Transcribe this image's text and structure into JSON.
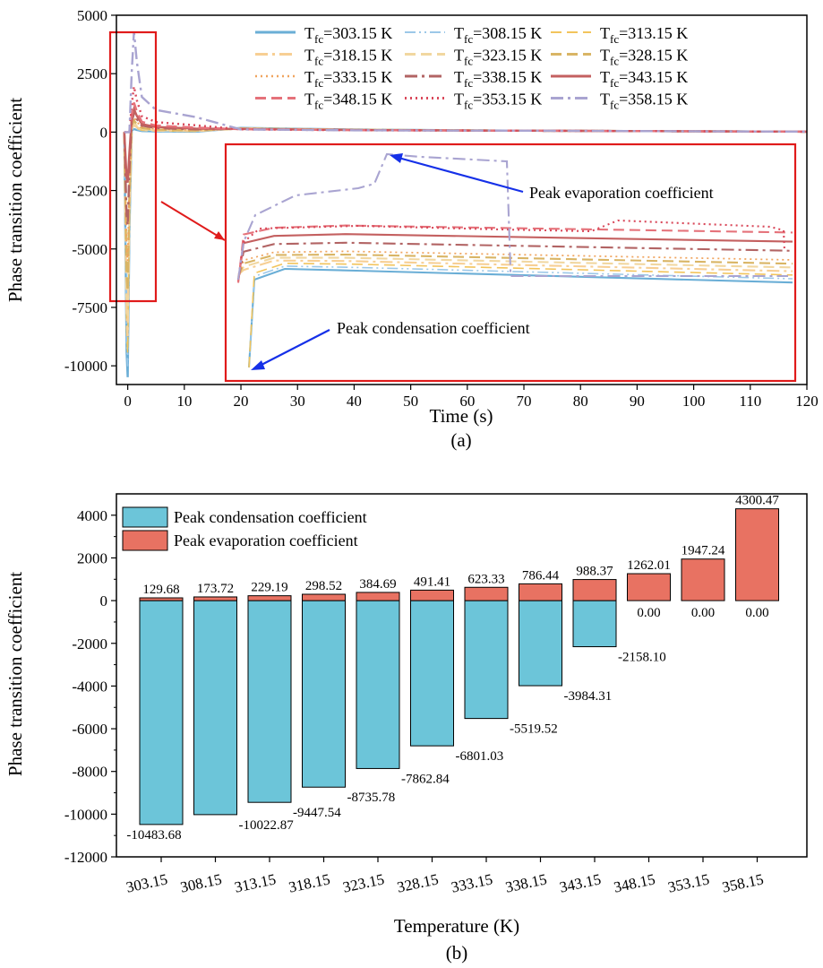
{
  "chart_data": [
    {
      "type": "line",
      "panel_label": "(a)",
      "xlabel": "Time (s)",
      "ylabel": "Phase transition coefficient",
      "xlim": [
        -2,
        120
      ],
      "ylim": [
        -10800,
        5000
      ],
      "x_ticks": [
        0,
        10,
        20,
        30,
        40,
        50,
        60,
        70,
        80,
        90,
        100,
        110,
        120
      ],
      "y_ticks": [
        5000,
        2500,
        0,
        -2500,
        -5000,
        -7500,
        -10000
      ],
      "legend_position": "top",
      "legend_prefix": "T",
      "legend_sub": "fc",
      "series": [
        {
          "name": "=303.15 K",
          "color": "#6aaed6",
          "dash": "solid",
          "width": 3,
          "peak_cond": -10483.68,
          "peak_evap": 129.68
        },
        {
          "name": "=308.15 K",
          "color": "#9cc8e8",
          "dash": "dashdotdot",
          "width": 2,
          "peak_cond": -10022.87,
          "peak_evap": 173.72
        },
        {
          "name": "=313.15 K",
          "color": "#f2c45c",
          "dash": "dash",
          "width": 2,
          "peak_cond": -9447.54,
          "peak_evap": 229.19
        },
        {
          "name": "=318.15 K",
          "color": "#f7cf94",
          "dash": "dashdot",
          "width": 3,
          "peak_cond": -8735.78,
          "peak_evap": 298.52
        },
        {
          "name": "=323.15 K",
          "color": "#f1d7a0",
          "dash": "dash",
          "width": 3,
          "peak_cond": -7862.84,
          "peak_evap": 384.69
        },
        {
          "name": "=328.15 K",
          "color": "#d9b565",
          "dash": "dash",
          "width": 3,
          "peak_cond": -6801.03,
          "peak_evap": 491.41
        },
        {
          "name": "=333.15 K",
          "color": "#f0a45e",
          "dash": "dot",
          "width": 2.5,
          "peak_cond": -5519.52,
          "peak_evap": 623.33
        },
        {
          "name": "=338.15 K",
          "color": "#b26464",
          "dash": "dashdot",
          "width": 3,
          "peak_cond": -3984.31,
          "peak_evap": 786.44
        },
        {
          "name": "=343.15 K",
          "color": "#c46060",
          "dash": "solid",
          "width": 3,
          "peak_cond": -2158.1,
          "peak_evap": 988.37
        },
        {
          "name": "=348.15 K",
          "color": "#e5727a",
          "dash": "dash",
          "width": 3,
          "peak_cond": 0,
          "peak_evap": 1262.01
        },
        {
          "name": "=353.15 K",
          "color": "#d9485a",
          "dash": "dot",
          "width": 3,
          "peak_cond": 0,
          "peak_evap": 1947.24
        },
        {
          "name": "=358.15 K",
          "color": "#a9a4d1",
          "dash": "dashdot",
          "width": 3,
          "peak_cond": 0,
          "peak_evap": 4300.47
        }
      ],
      "annotations": {
        "evaporation": "Peak evaporation coefficient",
        "condensation": "Peak condensation coefficient"
      }
    },
    {
      "type": "bar",
      "panel_label": "(b)",
      "xlabel": "Temperature (K)",
      "ylabel": "Phase transition coefficient",
      "ylim": [
        -12000,
        5000
      ],
      "y_ticks": [
        4000,
        2000,
        0,
        -2000,
        -4000,
        -6000,
        -8000,
        -10000,
        -12000
      ],
      "legend_position": "top-left",
      "categories": [
        "303.15",
        "308.15",
        "313.15",
        "318.15",
        "323.15",
        "328.15",
        "333.15",
        "338.15",
        "343.15",
        "348.15",
        "353.15",
        "358.15"
      ],
      "series": [
        {
          "name": "Peak condensation coefficient",
          "color": "#6cc5d9",
          "values": [
            -10483.68,
            -10022.87,
            -9447.54,
            -8735.78,
            -7862.84,
            -6801.03,
            -5519.52,
            -3984.31,
            -2158.1,
            0.0,
            0.0,
            0.0
          ],
          "labels": [
            "-10483.68",
            "-10022.87",
            "-9447.54",
            "-8735.78",
            "-7862.84",
            "-6801.03",
            "-5519.52",
            "-3984.31",
            "-2158.10",
            "0.00",
            "0.00",
            "0.00"
          ]
        },
        {
          "name": "Peak evaporation coefficient",
          "color": "#e87262",
          "values": [
            129.68,
            173.72,
            229.19,
            298.52,
            384.69,
            491.41,
            623.33,
            786.44,
            988.37,
            1262.01,
            1947.24,
            4300.47
          ],
          "labels": [
            "129.68",
            "173.72",
            "229.19",
            "298.52",
            "384.69",
            "491.41",
            "623.33",
            "786.44",
            "988.37",
            "1262.01",
            "1947.24",
            "4300.47"
          ]
        }
      ]
    }
  ]
}
